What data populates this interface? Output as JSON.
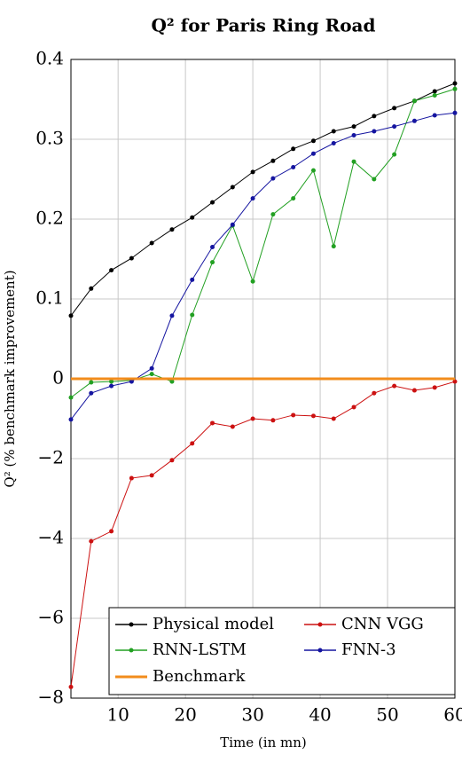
{
  "chart_data": {
    "type": "line",
    "title": "Q² for Paris Ring Road",
    "x_label": "Time (in mn)",
    "y_label": "Q² (% benchmark improvement)",
    "x": [
      3,
      6,
      9,
      12,
      15,
      18,
      21,
      24,
      27,
      30,
      33,
      36,
      39,
      42,
      45,
      48,
      51,
      54,
      57,
      60
    ],
    "xlim": [
      3,
      60
    ],
    "xticks": [
      10,
      20,
      30,
      40,
      50,
      60
    ],
    "ylim": [
      -8,
      0.4
    ],
    "yticks": [
      {
        "value": -8,
        "label": "−8"
      },
      {
        "value": -6,
        "label": "−6"
      },
      {
        "value": -4,
        "label": "−4"
      },
      {
        "value": -2,
        "label": "−2"
      },
      0,
      0.1,
      0.2,
      0.3,
      0.4
    ],
    "y_scale": "piecewise-between-ticks",
    "grid": true,
    "legend_position": "lower right",
    "series": [
      {
        "name": "Physical model",
        "color": "#000000",
        "values": [
          0.079,
          0.113,
          0.136,
          0.151,
          0.17,
          0.187,
          0.202,
          0.221,
          0.24,
          0.259,
          0.273,
          0.288,
          0.298,
          0.31,
          0.316,
          0.329,
          0.339,
          0.348,
          0.36,
          0.37
        ]
      },
      {
        "name": "CNN VGG",
        "color": "#cc1111",
        "values": [
          -7.72,
          -4.07,
          -3.82,
          -2.49,
          -2.42,
          -2.04,
          -1.62,
          -1.11,
          -1.2,
          -1.0,
          -1.04,
          -0.91,
          -0.93,
          -1.0,
          -0.71,
          -0.36,
          -0.18,
          -0.29,
          -0.22,
          -0.07
        ]
      },
      {
        "name": "RNN-LSTM",
        "color": "#22a022",
        "values": [
          -0.47,
          -0.09,
          -0.07,
          -0.04,
          0.006,
          -0.07,
          0.08,
          0.146,
          0.192,
          0.122,
          0.206,
          0.226,
          0.261,
          0.166,
          0.272,
          0.25,
          0.281,
          0.348,
          0.355,
          0.363
        ]
      },
      {
        "name": "FNN-3",
        "color": "#1515a0",
        "values": [
          -1.02,
          -0.36,
          -0.18,
          -0.07,
          0.013,
          0.079,
          0.124,
          0.165,
          0.193,
          0.226,
          0.251,
          0.265,
          0.282,
          0.295,
          0.305,
          0.31,
          0.316,
          0.323,
          0.33,
          0.333
        ]
      },
      {
        "name": "Benchmark",
        "color": "#f28c1c",
        "markers": false,
        "values": [
          0,
          0,
          0,
          0,
          0,
          0,
          0,
          0,
          0,
          0,
          0,
          0,
          0,
          0,
          0,
          0,
          0,
          0,
          0,
          0
        ]
      }
    ]
  }
}
